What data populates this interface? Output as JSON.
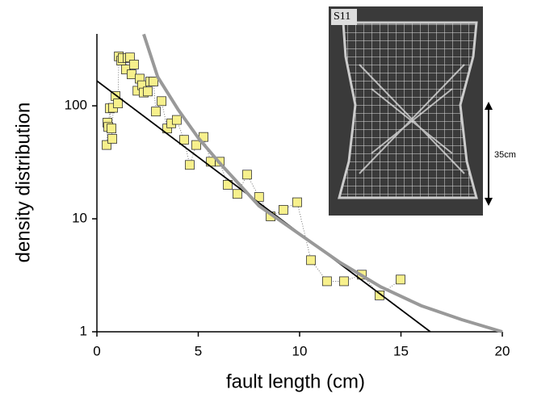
{
  "chart_data": {
    "type": "scatter",
    "x_label": "fault length (cm)",
    "y_label": "density distribution",
    "annotations": [
      "S11",
      "35cm"
    ],
    "log_y": true,
    "xlim": [
      0,
      20
    ],
    "xticks": [
      0,
      5,
      10,
      15,
      20
    ],
    "ylim": [
      1,
      433
    ],
    "yticks": [
      1,
      10,
      100
    ],
    "series": [
      {
        "style": "markers",
        "color": "#f7f08c",
        "x": [
          0.48,
          0.52,
          0.56,
          0.64,
          0.72,
          0.76,
          0.8,
          0.92,
          1.04,
          1.08,
          1.2,
          1.27,
          1.43,
          1.51,
          1.63,
          1.71,
          1.83,
          2.0,
          2.11,
          2.23,
          2.31,
          2.51,
          2.63,
          2.79,
          2.91,
          3.19,
          3.47,
          3.67,
          3.94,
          4.3,
          4.58,
          4.9,
          5.26,
          5.62,
          6.06,
          6.45,
          6.93,
          7.41,
          8.0,
          8.57,
          9.2,
          9.88,
          10.56,
          11.35,
          12.19,
          13.07,
          13.94,
          14.98
        ],
        "values": [
          45,
          71,
          65,
          95,
          63,
          51,
          96,
          122,
          105,
          274,
          251,
          265,
          210,
          265,
          268,
          190,
          232,
          136,
          174,
          152,
          131,
          134,
          164,
          164,
          89,
          110,
          63,
          70,
          75,
          50,
          30,
          45,
          53,
          32,
          32,
          20,
          16.6,
          24.6,
          15.6,
          10.5,
          12,
          14,
          4.3,
          2.8,
          2.8,
          3.2,
          2.1,
          2.9
        ]
      },
      {
        "style": "line",
        "color": "#000000",
        "x": [
          0,
          16.45
        ],
        "values": [
          166,
          1
        ]
      },
      {
        "style": "line",
        "color": "#999999",
        "x": [
          2.31,
          3,
          4,
          5,
          6,
          8,
          10,
          12,
          14,
          16,
          18,
          20
        ],
        "values": [
          430,
          180,
          93,
          52,
          32,
          13,
          7.3,
          4.1,
          2.5,
          1.7,
          1.28,
          1
        ]
      }
    ]
  }
}
